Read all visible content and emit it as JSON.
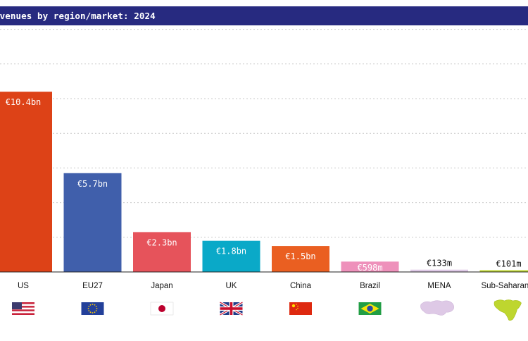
{
  "chart_data": {
    "type": "bar",
    "title": "evenues by region/market: 2024",
    "categories": [
      "US",
      "EU27",
      "Japan",
      "UK",
      "China",
      "Brazil",
      "MENA",
      "Sub-Saharan A"
    ],
    "values": [
      10.4,
      5.7,
      2.3,
      1.8,
      1.5,
      0.598,
      0.133,
      0.101
    ],
    "value_labels": [
      "€10.4bn",
      "€5.7bn",
      "€2.3bn",
      "€1.8bn",
      "€1.5bn",
      "€598m",
      "€133m",
      "€101m"
    ],
    "units": "EUR billions",
    "colors": [
      "#dd4217",
      "#405fab",
      "#e6535b",
      "#0aa9c8",
      "#ea5f21",
      "#ee91bb",
      "#dec9e6",
      "#bed62f"
    ],
    "label_colors": [
      "#ffffff",
      "#ffffff",
      "#ffffff",
      "#ffffff",
      "#ffffff",
      "#ffffff",
      "#111111",
      "#111111"
    ],
    "icons": [
      "us-flag-icon",
      "eu-flag-icon",
      "japan-flag-icon",
      "uk-flag-icon",
      "china-flag-icon",
      "brazil-flag-icon",
      "mena-map-icon",
      "africa-map-icon"
    ],
    "grid": true,
    "ylim": [
      0,
      12
    ],
    "xlabel": "",
    "ylabel": ""
  }
}
